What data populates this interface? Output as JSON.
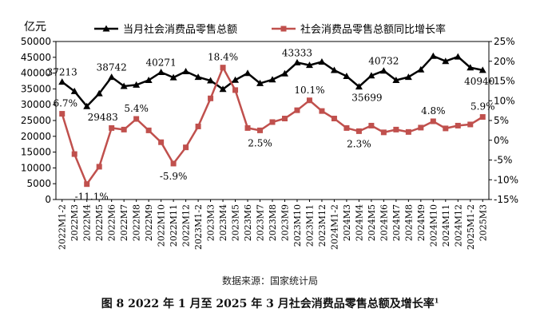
{
  "chart_data": {
    "type": "line",
    "ylabel_left": "亿元",
    "ylim_left": [
      0,
      50000
    ],
    "yticks_left": [
      "0",
      "5000",
      "10000",
      "15000",
      "20000",
      "25000",
      "30000",
      "35000",
      "40000",
      "45000",
      "50000"
    ],
    "ylim_right": [
      -15,
      25
    ],
    "yticks_right": [
      "-15%",
      "-10%",
      "-5%",
      "0%",
      "5%",
      "10%",
      "15%",
      "20%",
      "25%"
    ],
    "categories": [
      "2022M1-2",
      "2022M3",
      "2022M4",
      "2022M5",
      "2022M6",
      "2022M7",
      "2022M8",
      "2022M9",
      "2022M10",
      "2022M11",
      "2022M12",
      "2023M1-2",
      "2023M3",
      "2023M4",
      "2023M5",
      "2023M6",
      "2023M7",
      "2023M8",
      "2023M9",
      "2023M10",
      "2023M11",
      "2023M12",
      "2024M1-2",
      "2024M3",
      "2024M4",
      "2024M5",
      "2024M6",
      "2024M7",
      "2024M8",
      "2024M9",
      "2024M10",
      "2024M11",
      "2024M12",
      "2025M1-2",
      "2025M3"
    ],
    "series": [
      {
        "name": "当月社会消费品零售总额",
        "axis": "left",
        "color": "#000000",
        "values": [
          37213,
          34233,
          29483,
          33547,
          38742,
          35870,
          36258,
          37745,
          40271,
          38615,
          40542,
          38731,
          37623,
          34910,
          37803,
          39951,
          36761,
          37933,
          39826,
          43333,
          42505,
          43550,
          40912,
          39020,
          35699,
          39211,
          40732,
          37757,
          38726,
          41112,
          45396,
          43763,
          45172,
          41731,
          40940
        ]
      },
      {
        "name": "社会消费品零售总额同比增长率",
        "axis": "right",
        "color": "#c0504d",
        "values": [
          6.7,
          -3.5,
          -11.1,
          -6.7,
          3.1,
          2.7,
          5.4,
          2.5,
          -0.5,
          -5.9,
          -1.8,
          3.5,
          10.6,
          18.4,
          12.7,
          3.1,
          2.5,
          4.6,
          5.5,
          7.6,
          10.1,
          7.4,
          5.5,
          3.1,
          2.3,
          3.7,
          2.0,
          2.7,
          2.1,
          3.2,
          4.8,
          3.0,
          3.7,
          4.0,
          5.9
        ]
      }
    ],
    "annotations_left": [
      {
        "index": 0,
        "text": "37213"
      },
      {
        "index": 2,
        "text": "29483"
      },
      {
        "index": 4,
        "text": "38742"
      },
      {
        "index": 8,
        "text": "40271"
      },
      {
        "index": 19,
        "text": "43333"
      },
      {
        "index": 24,
        "text": "35699"
      },
      {
        "index": 26,
        "text": "40732"
      },
      {
        "index": 34,
        "text": "40940"
      }
    ],
    "annotations_right": [
      {
        "index": 0,
        "text": "6.7%"
      },
      {
        "index": 2,
        "text": "-11.1%"
      },
      {
        "index": 6,
        "text": "5.4%"
      },
      {
        "index": 9,
        "text": "-5.9%"
      },
      {
        "index": 13,
        "text": "18.4%"
      },
      {
        "index": 16,
        "text": "2.5%"
      },
      {
        "index": 20,
        "text": "10.1%"
      },
      {
        "index": 24,
        "text": "2.3%"
      },
      {
        "index": 30,
        "text": "4.8%"
      },
      {
        "index": 34,
        "text": "5.9%"
      }
    ],
    "legend_position": "top",
    "grid": false
  },
  "source_text": "数据来源：国家统计局",
  "caption_text": "图 8  2022 年 1 月至 2025 年 3 月社会消费品零售总额及增长率",
  "caption_sup": "1"
}
